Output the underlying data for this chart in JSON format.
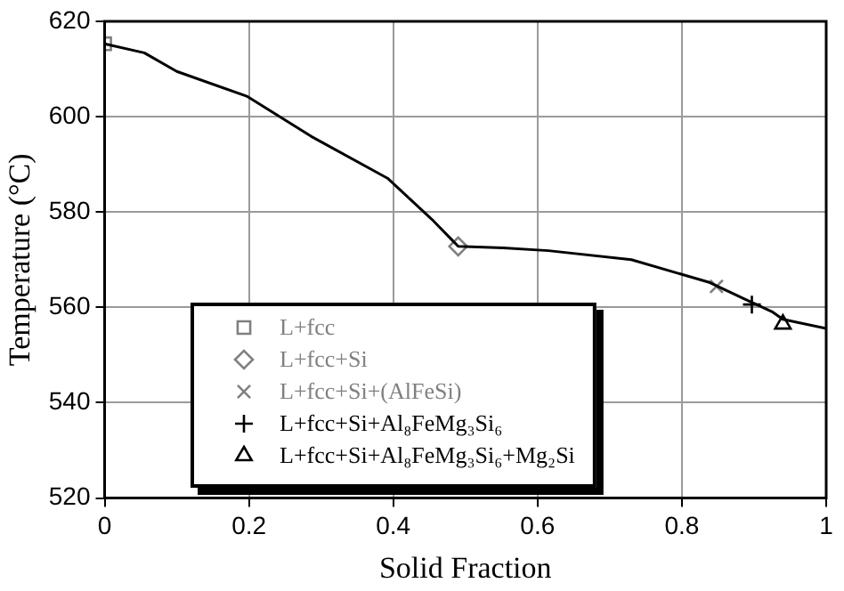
{
  "chart_data": {
    "type": "line",
    "xlabel": "Solid Fraction",
    "ylabel": "Temperature (°C)",
    "xlim": [
      0,
      1
    ],
    "xticks": [
      0,
      0.2,
      0.4,
      0.6,
      0.8,
      1
    ],
    "ylim": [
      520,
      620
    ],
    "yticks": [
      520,
      540,
      560,
      580,
      600,
      620
    ],
    "grid": true,
    "legend": "bottom left",
    "marker": "none",
    "line_style": "solid",
    "series": [
      {
        "type": "line",
        "color": "#000000",
        "x": [
          0,
          0.055,
          0.1,
          0.197,
          0.286,
          0.392,
          0.454,
          0.49,
          0.552,
          0.615,
          0.73,
          0.837,
          0.886,
          0.926,
          0.94,
          1
        ],
        "values": [
          615.3,
          613.4,
          609.5,
          604.3,
          595.9,
          587.1,
          578.4,
          572.8,
          572.5,
          571.9,
          570,
          565.3,
          561.8,
          559,
          557.5,
          555.6
        ]
      },
      {
        "type": "scatter",
        "name": "L+fcc",
        "color": "#808080",
        "marker": "square",
        "x": [
          0
        ],
        "values": [
          615.3
        ]
      },
      {
        "type": "scatter",
        "name": "L+fcc+Si",
        "color": "#808080",
        "marker": "diamond",
        "x": [
          0.49
        ],
        "values": [
          572.8
        ]
      },
      {
        "type": "scatter",
        "name": "L+fcc+Si+(AlFeSi)",
        "color": "#808080",
        "marker": "x",
        "x": [
          0.848
        ],
        "values": [
          564.4
        ]
      },
      {
        "type": "scatter",
        "name": "L+fcc+Si+Al₈FeMg₃Si₆",
        "color": "#000000",
        "marker": "plus",
        "x": [
          0.897
        ],
        "values": [
          560.6
        ]
      },
      {
        "type": "scatter",
        "name": "L+fcc+Si+Al₈FeMg₃Si₆+Mg₂Si",
        "color": "#000000",
        "marker": "triangle",
        "x": [
          0.94
        ],
        "values": [
          556.5
        ]
      }
    ]
  }
}
